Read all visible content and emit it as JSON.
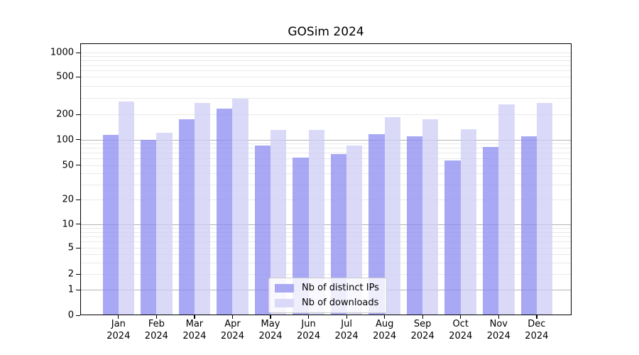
{
  "title": "GOSim 2024",
  "chart_data": {
    "type": "bar",
    "title": "GOSim 2024",
    "xlabel": "",
    "ylabel": "",
    "yscale": "log-with-zero",
    "grid": true,
    "legend_position": "lower center",
    "y_ticks": [
      0,
      1,
      2,
      5,
      10,
      20,
      50,
      100,
      200,
      500,
      1000
    ],
    "ylim": [
      0,
      1350
    ],
    "categories": [
      "Jan 2024",
      "Feb 2024",
      "Mar 2024",
      "Apr 2024",
      "May 2024",
      "Jun 2024",
      "Jul 2024",
      "Aug 2024",
      "Sep 2024",
      "Oct 2024",
      "Nov 2024",
      "Dec 2024"
    ],
    "series": [
      {
        "name": "Nb of distinct IPs",
        "color": "rgba(139,139,240,0.75)",
        "swatch_color": "#a8a8f3",
        "values": [
          115,
          100,
          175,
          228,
          85,
          62,
          67,
          116,
          109,
          57,
          82,
          110
        ]
      },
      {
        "name": "Nb of downloads",
        "color": "rgba(206,206,246,0.75)",
        "swatch_color": "#dadaf8",
        "values": [
          275,
          120,
          265,
          295,
          130,
          130,
          85,
          185,
          175,
          132,
          255,
          265
        ]
      }
    ],
    "colors": {
      "major_gridline": "#b3b3b3",
      "minor_gridline": "#e9e9e9",
      "axis": "#000000"
    }
  }
}
